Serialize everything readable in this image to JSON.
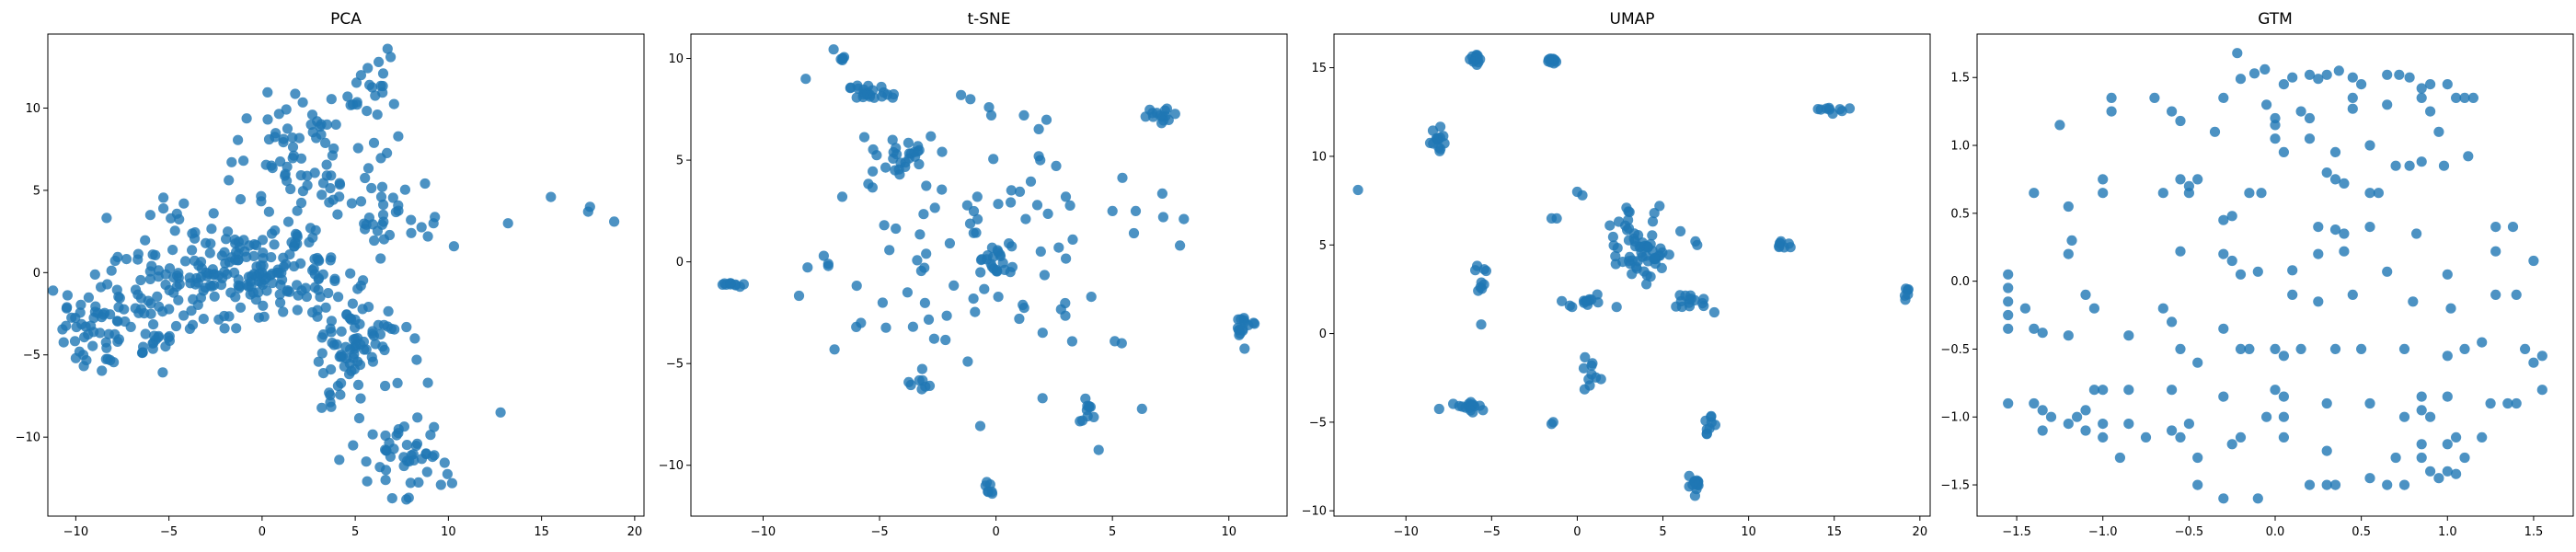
{
  "chart_data": [
    {
      "type": "scatter",
      "title": "PCA",
      "xlim": [
        -11.5,
        20.5
      ],
      "ylim": [
        -14.8,
        14.5
      ],
      "xticks": [
        -10,
        -5,
        0,
        5,
        10,
        15,
        20
      ],
      "yticks": [
        -10,
        -5,
        0,
        5,
        10
      ],
      "grid": false,
      "color": "#1f77b4",
      "clusters": [
        {
          "cx": -7.5,
          "cy": -3.2,
          "sx": 1.8,
          "sy": 1.5,
          "n": 90
        },
        {
          "cx": -3.0,
          "cy": 0.0,
          "sx": 2.0,
          "sy": 1.8,
          "n": 110
        },
        {
          "cx": 1.0,
          "cy": 0.5,
          "sx": 2.0,
          "sy": 1.6,
          "n": 100
        },
        {
          "cx": 2.5,
          "cy": 7.0,
          "sx": 1.8,
          "sy": 2.0,
          "n": 70
        },
        {
          "cx": 6.0,
          "cy": 9.5,
          "sx": 1.0,
          "sy": 2.0,
          "n": 25
        },
        {
          "cx": 4.8,
          "cy": -4.0,
          "sx": 1.1,
          "sy": 1.6,
          "n": 80
        },
        {
          "cx": 7.5,
          "cy": -11.0,
          "sx": 1.2,
          "sy": 1.2,
          "n": 45
        },
        {
          "cx": 6.5,
          "cy": 3.5,
          "sx": 1.2,
          "sy": 1.0,
          "n": 25
        },
        {
          "cx": 4.0,
          "cy": -7.5,
          "sx": 0.6,
          "sy": 0.6,
          "n": 6
        }
      ],
      "points": [
        [
          -9.8,
          -4.8
        ],
        [
          -10.0,
          -5.2
        ],
        [
          -9.6,
          -5.0
        ],
        [
          8.9,
          -6.7
        ],
        [
          8.3,
          -5.3
        ],
        [
          12.8,
          -8.5
        ],
        [
          13.2,
          3.0
        ],
        [
          15.5,
          4.6
        ],
        [
          17.6,
          4.0
        ],
        [
          17.5,
          3.7
        ],
        [
          18.9,
          3.1
        ],
        [
          6.9,
          13.1
        ],
        [
          6.5,
          12.1
        ],
        [
          9.2,
          3.0
        ],
        [
          10.2,
          -12.8
        ],
        [
          9.6,
          -12.9
        ],
        [
          -1.0,
          6.8
        ],
        [
          0.5,
          6.5
        ],
        [
          8.2,
          -4.0
        ],
        [
          10.3,
          1.6
        ],
        [
          8.9,
          2.2
        ],
        [
          -6.0,
          3.5
        ],
        [
          -5.3,
          3.9
        ],
        [
          -4.2,
          4.2
        ],
        [
          -2.6,
          3.6
        ]
      ]
    },
    {
      "type": "scatter",
      "title": "t-SNE",
      "xlim": [
        -13.1,
        12.5
      ],
      "ylim": [
        -12.5,
        11.2
      ],
      "xticks": [
        -10,
        -5,
        0,
        5,
        10
      ],
      "yticks": [
        -10,
        -5,
        0,
        5,
        10
      ],
      "grid": false,
      "color": "#1f77b4",
      "clusters": [
        {
          "cx": -6.6,
          "cy": 10.0,
          "sx": 0.05,
          "sy": 0.1,
          "n": 5
        },
        {
          "cx": -5.3,
          "cy": 8.2,
          "sx": 0.5,
          "sy": 0.15,
          "n": 14
        },
        {
          "cx": -5.7,
          "cy": 8.5,
          "sx": 0.5,
          "sy": 0.15,
          "n": 8
        },
        {
          "cx": 7.0,
          "cy": 7.2,
          "sx": 0.3,
          "sy": 0.2,
          "n": 14
        },
        {
          "cx": -4.2,
          "cy": 5.2,
          "sx": 0.5,
          "sy": 0.4,
          "n": 24
        },
        {
          "cx": 0.2,
          "cy": 0.3,
          "sx": 0.4,
          "sy": 0.5,
          "n": 22
        },
        {
          "cx": -11.3,
          "cy": -1.1,
          "sx": 0.3,
          "sy": 0.08,
          "n": 10
        },
        {
          "cx": 10.7,
          "cy": -3.2,
          "sx": 0.35,
          "sy": 0.4,
          "n": 16
        },
        {
          "cx": -0.3,
          "cy": -11.3,
          "sx": 0.1,
          "sy": 0.3,
          "n": 7
        },
        {
          "cx": -3.2,
          "cy": -6.0,
          "sx": 0.2,
          "sy": 0.3,
          "n": 8
        },
        {
          "cx": 4.0,
          "cy": -7.3,
          "sx": 0.3,
          "sy": 0.3,
          "n": 10
        },
        {
          "cx": 0.0,
          "cy": 0.0,
          "sx": 3.5,
          "sy": 3.5,
          "n": 80
        }
      ],
      "points": [
        [
          -6.6,
          3.2
        ],
        [
          -7.2,
          -0.1
        ],
        [
          -7.2,
          -0.2
        ],
        [
          -6.0,
          -3.2
        ],
        [
          -5.8,
          -3.0
        ],
        [
          -4.8,
          1.8
        ],
        [
          -3.8,
          -1.5
        ],
        [
          -3.0,
          0.4
        ],
        [
          -1.1,
          8.0
        ],
        [
          -0.3,
          7.6
        ],
        [
          -0.2,
          7.2
        ],
        [
          1.2,
          7.2
        ],
        [
          1.9,
          5.0
        ],
        [
          2.0,
          -6.7
        ],
        [
          3.0,
          3.2
        ],
        [
          5.0,
          2.5
        ],
        [
          6.0,
          2.5
        ],
        [
          7.9,
          0.8
        ],
        [
          5.4,
          -4.0
        ],
        [
          5.1,
          -3.9
        ],
        [
          -0.8,
          3.2
        ],
        [
          1.0,
          -2.8
        ],
        [
          -1.5,
          8.2
        ]
      ]
    },
    {
      "type": "scatter",
      "title": "UMAP",
      "xlim": [
        -14.2,
        20.6
      ],
      "ylim": [
        -10.3,
        16.9
      ],
      "xticks": [
        -10,
        -5,
        0,
        5,
        10,
        15,
        20
      ],
      "yticks": [
        -10,
        -5,
        0,
        5,
        10,
        15
      ],
      "grid": false,
      "color": "#1f77b4",
      "clusters": [
        {
          "cx": -5.9,
          "cy": 15.5,
          "sx": 0.15,
          "sy": 0.1,
          "n": 14
        },
        {
          "cx": -1.5,
          "cy": 15.4,
          "sx": 0.15,
          "sy": 0.1,
          "n": 10
        },
        {
          "cx": -8.2,
          "cy": 10.7,
          "sx": 0.2,
          "sy": 0.3,
          "n": 14
        },
        {
          "cx": 3.8,
          "cy": 4.5,
          "sx": 0.9,
          "sy": 0.8,
          "n": 50
        },
        {
          "cx": 2.6,
          "cy": 6.0,
          "sx": 0.5,
          "sy": 0.7,
          "n": 10
        },
        {
          "cx": -5.7,
          "cy": 3.0,
          "sx": 0.2,
          "sy": 1.1,
          "n": 10
        },
        {
          "cx": 0.5,
          "cy": 1.8,
          "sx": 0.5,
          "sy": 0.2,
          "n": 12
        },
        {
          "cx": 6.2,
          "cy": 1.8,
          "sx": 0.6,
          "sy": 0.3,
          "n": 14
        },
        {
          "cx": 11.8,
          "cy": 5.0,
          "sx": 0.3,
          "sy": 0.2,
          "n": 8
        },
        {
          "cx": 14.6,
          "cy": 12.6,
          "sx": 0.5,
          "sy": 0.1,
          "n": 8
        },
        {
          "cx": 19.2,
          "cy": 2.3,
          "sx": 0.1,
          "sy": 0.2,
          "n": 6
        },
        {
          "cx": -7.0,
          "cy": -4.1,
          "sx": 0.8,
          "sy": 0.15,
          "n": 16
        },
        {
          "cx": 0.6,
          "cy": -2.7,
          "sx": 0.3,
          "sy": 0.7,
          "n": 10
        },
        {
          "cx": 7.7,
          "cy": -5.2,
          "sx": 0.2,
          "sy": 0.3,
          "n": 8
        },
        {
          "cx": 6.9,
          "cy": -8.5,
          "sx": 0.15,
          "sy": 0.3,
          "n": 14
        }
      ],
      "points": [
        [
          -12.8,
          8.1
        ],
        [
          -1.5,
          6.5
        ],
        [
          -1.2,
          6.5
        ],
        [
          0.0,
          8.0
        ],
        [
          0.3,
          7.8
        ],
        [
          -1.4,
          -5.0
        ],
        [
          -1.5,
          -5.1
        ],
        [
          6.9,
          5.2
        ],
        [
          7.0,
          5.0
        ],
        [
          4.8,
          7.2
        ],
        [
          4.5,
          6.8
        ],
        [
          2.3,
          1.5
        ],
        [
          8.0,
          1.2
        ],
        [
          15.9,
          12.7
        ],
        [
          -0.3,
          1.5
        ],
        [
          7.8,
          -4.7
        ]
      ]
    },
    {
      "type": "scatter",
      "title": "GTM",
      "xlim": [
        -1.73,
        1.73
      ],
      "ylim": [
        -1.73,
        1.82
      ],
      "xticks": [
        -1.5,
        -1.0,
        -0.5,
        0.0,
        0.5,
        1.0,
        1.5
      ],
      "yticks": [
        -1.5,
        -1.0,
        -0.5,
        0.0,
        0.5,
        1.0,
        1.5
      ],
      "tick_labels": [
        "−1.5",
        "−1.0",
        "−0.5",
        "0.0",
        "0.5",
        "1.0",
        "1.5"
      ],
      "grid": false,
      "color": "#1f77b4",
      "clusters": [],
      "points": [
        [
          -0.22,
          1.68
        ],
        [
          -0.12,
          1.53
        ],
        [
          -0.06,
          1.56
        ],
        [
          -0.2,
          1.49
        ],
        [
          0.05,
          1.45
        ],
        [
          0.1,
          1.5
        ],
        [
          0.2,
          1.52
        ],
        [
          0.25,
          1.49
        ],
        [
          0.3,
          1.52
        ],
        [
          0.37,
          1.55
        ],
        [
          0.45,
          1.5
        ],
        [
          0.5,
          1.45
        ],
        [
          0.65,
          1.52
        ],
        [
          0.72,
          1.52
        ],
        [
          0.78,
          1.5
        ],
        [
          0.85,
          1.42
        ],
        [
          0.9,
          1.45
        ],
        [
          1.0,
          1.45
        ],
        [
          1.05,
          1.35
        ],
        [
          1.1,
          1.35
        ],
        [
          1.15,
          1.35
        ],
        [
          -0.95,
          1.35
        ],
        [
          -0.95,
          1.25
        ],
        [
          -0.7,
          1.35
        ],
        [
          -0.6,
          1.25
        ],
        [
          -0.55,
          1.18
        ],
        [
          -0.3,
          1.35
        ],
        [
          -0.05,
          1.3
        ],
        [
          0.0,
          1.2
        ],
        [
          0.0,
          1.15
        ],
        [
          0.15,
          1.25
        ],
        [
          0.2,
          1.2
        ],
        [
          0.45,
          1.35
        ],
        [
          0.45,
          1.27
        ],
        [
          0.65,
          1.3
        ],
        [
          0.85,
          1.35
        ],
        [
          0.9,
          1.25
        ],
        [
          0.95,
          1.1
        ],
        [
          -1.25,
          1.15
        ],
        [
          -0.35,
          1.1
        ],
        [
          0.0,
          1.05
        ],
        [
          0.05,
          0.95
        ],
        [
          0.2,
          1.05
        ],
        [
          0.35,
          0.95
        ],
        [
          0.55,
          1.0
        ],
        [
          -1.0,
          0.75
        ],
        [
          -0.55,
          0.75
        ],
        [
          -0.5,
          0.7
        ],
        [
          -0.45,
          0.75
        ],
        [
          -0.5,
          0.65
        ],
        [
          -0.65,
          0.65
        ],
        [
          0.3,
          0.8
        ],
        [
          0.35,
          0.75
        ],
        [
          0.4,
          0.72
        ],
        [
          0.7,
          0.85
        ],
        [
          0.78,
          0.85
        ],
        [
          0.85,
          0.88
        ],
        [
          0.98,
          0.85
        ],
        [
          1.12,
          0.92
        ],
        [
          -1.4,
          0.65
        ],
        [
          -1.2,
          0.55
        ],
        [
          -1.0,
          0.65
        ],
        [
          -0.15,
          0.65
        ],
        [
          -0.08,
          0.65
        ],
        [
          0.55,
          0.65
        ],
        [
          0.6,
          0.65
        ],
        [
          -0.3,
          0.45
        ],
        [
          -0.25,
          0.48
        ],
        [
          0.25,
          0.4
        ],
        [
          0.35,
          0.38
        ],
        [
          0.4,
          0.35
        ],
        [
          0.55,
          0.4
        ],
        [
          0.82,
          0.35
        ],
        [
          1.28,
          0.4
        ],
        [
          1.38,
          0.4
        ],
        [
          -1.18,
          0.3
        ],
        [
          -1.2,
          0.2
        ],
        [
          -0.55,
          0.22
        ],
        [
          -0.3,
          0.2
        ],
        [
          -0.25,
          0.15
        ],
        [
          0.25,
          0.2
        ],
        [
          0.4,
          0.22
        ],
        [
          1.28,
          0.22
        ],
        [
          1.5,
          0.15
        ],
        [
          -0.2,
          0.05
        ],
        [
          -0.1,
          0.07
        ],
        [
          0.1,
          0.08
        ],
        [
          0.65,
          0.07
        ],
        [
          1.0,
          0.05
        ],
        [
          -1.55,
          0.05
        ],
        [
          -1.55,
          -0.05
        ],
        [
          -1.55,
          -0.15
        ],
        [
          -1.55,
          -0.25
        ],
        [
          -1.55,
          -0.35
        ],
        [
          -1.45,
          -0.2
        ],
        [
          -1.4,
          -0.35
        ],
        [
          -1.35,
          -0.38
        ],
        [
          -1.1,
          -0.1
        ],
        [
          -1.05,
          -0.2
        ],
        [
          -0.65,
          -0.2
        ],
        [
          -0.6,
          -0.3
        ],
        [
          -0.3,
          -0.35
        ],
        [
          0.1,
          -0.1
        ],
        [
          0.25,
          -0.15
        ],
        [
          0.45,
          -0.1
        ],
        [
          0.8,
          -0.15
        ],
        [
          1.02,
          -0.2
        ],
        [
          1.28,
          -0.1
        ],
        [
          1.4,
          -0.1
        ],
        [
          -1.2,
          -0.4
        ],
        [
          -0.85,
          -0.4
        ],
        [
          -0.55,
          -0.5
        ],
        [
          -0.45,
          -0.6
        ],
        [
          -0.2,
          -0.5
        ],
        [
          -0.15,
          -0.5
        ],
        [
          0.0,
          -0.5
        ],
        [
          0.05,
          -0.55
        ],
        [
          0.15,
          -0.5
        ],
        [
          0.35,
          -0.5
        ],
        [
          0.5,
          -0.5
        ],
        [
          0.75,
          -0.5
        ],
        [
          1.0,
          -0.55
        ],
        [
          1.1,
          -0.5
        ],
        [
          1.2,
          -0.45
        ],
        [
          1.45,
          -0.5
        ],
        [
          1.5,
          -0.6
        ],
        [
          1.55,
          -0.55
        ],
        [
          -1.55,
          -0.9
        ],
        [
          -1.4,
          -0.9
        ],
        [
          -1.35,
          -0.95
        ],
        [
          -1.1,
          -0.95
        ],
        [
          -1.05,
          -0.8
        ],
        [
          -1.0,
          -0.8
        ],
        [
          -0.85,
          -0.8
        ],
        [
          -0.6,
          -0.8
        ],
        [
          -0.3,
          -0.85
        ],
        [
          0.0,
          -0.8
        ],
        [
          0.05,
          -0.85
        ],
        [
          0.3,
          -0.9
        ],
        [
          0.55,
          -0.9
        ],
        [
          0.85,
          -0.85
        ],
        [
          1.0,
          -0.85
        ],
        [
          1.25,
          -0.9
        ],
        [
          1.35,
          -0.9
        ],
        [
          1.4,
          -0.9
        ],
        [
          1.55,
          -0.8
        ],
        [
          -1.3,
          -1.0
        ],
        [
          -1.35,
          -1.1
        ],
        [
          -1.2,
          -1.05
        ],
        [
          -1.15,
          -1.0
        ],
        [
          -1.0,
          -1.05
        ],
        [
          -0.85,
          -1.05
        ],
        [
          -0.6,
          -1.1
        ],
        [
          -0.05,
          -1.0
        ],
        [
          0.05,
          -1.0
        ],
        [
          0.75,
          -1.0
        ],
        [
          0.85,
          -0.95
        ],
        [
          0.9,
          -1.0
        ],
        [
          -1.1,
          -1.1
        ],
        [
          -1.0,
          -1.15
        ],
        [
          -0.75,
          -1.15
        ],
        [
          -0.55,
          -1.15
        ],
        [
          -0.5,
          -1.05
        ],
        [
          -0.25,
          -1.2
        ],
        [
          -0.2,
          -1.15
        ],
        [
          0.05,
          -1.15
        ],
        [
          0.85,
          -1.2
        ],
        [
          1.0,
          -1.2
        ],
        [
          1.05,
          -1.15
        ],
        [
          1.2,
          -1.15
        ],
        [
          -0.9,
          -1.3
        ],
        [
          -0.45,
          -1.3
        ],
        [
          0.3,
          -1.25
        ],
        [
          0.7,
          -1.3
        ],
        [
          0.85,
          -1.3
        ],
        [
          1.1,
          -1.3
        ],
        [
          -0.45,
          -1.5
        ],
        [
          0.2,
          -1.5
        ],
        [
          0.3,
          -1.5
        ],
        [
          0.35,
          -1.5
        ],
        [
          0.65,
          -1.5
        ],
        [
          0.75,
          -1.5
        ],
        [
          0.9,
          -1.4
        ],
        [
          0.95,
          -1.45
        ],
        [
          1.0,
          -1.4
        ],
        [
          1.05,
          -1.42
        ],
        [
          -0.1,
          -1.6
        ],
        [
          0.55,
          -1.45
        ],
        [
          -0.3,
          -1.6
        ]
      ]
    }
  ]
}
